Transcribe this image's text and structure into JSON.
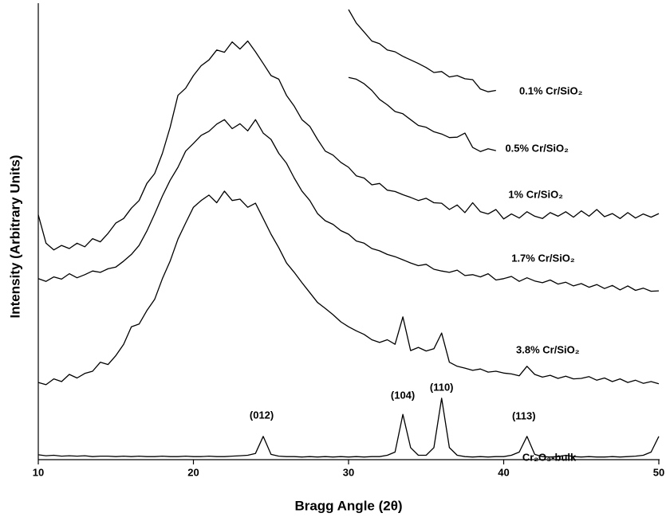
{
  "chart_data": {
    "type": "line",
    "x_label": "Bragg Angle (2θ)",
    "y_label": "Intensity (Arbitrary Units)",
    "xlim": [
      10,
      50
    ],
    "xticks": [
      10,
      20,
      30,
      40,
      50
    ],
    "ylim": [
      0,
      100
    ],
    "x": [
      10,
      10.5,
      11,
      11.5,
      12,
      12.5,
      13,
      13.5,
      14,
      14.5,
      15,
      15.5,
      16,
      16.5,
      17,
      17.5,
      18,
      18.5,
      19,
      19.5,
      20,
      20.5,
      21,
      21.5,
      22,
      22.5,
      23,
      23.5,
      24,
      24.5,
      25,
      25.5,
      26,
      26.5,
      27,
      27.5,
      28,
      28.5,
      29,
      29.5,
      30,
      30.5,
      31,
      31.5,
      32,
      32.5,
      33,
      33.5,
      34,
      34.5,
      35,
      35.5,
      36,
      36.5,
      37,
      37.5,
      38,
      38.5,
      39,
      39.5,
      40,
      40.5,
      41,
      41.5,
      42,
      42.5,
      43,
      43.5,
      44,
      44.5,
      45,
      45.5,
      46,
      46.5,
      47,
      47.5,
      48,
      48.5,
      49,
      49.5,
      50
    ],
    "series": [
      {
        "name": "0.1% Cr/SiO₂",
        "color": "#000000",
        "label_at": [
          41.0,
          81.7
        ],
        "values": [
          null,
          null,
          null,
          null,
          null,
          null,
          null,
          null,
          null,
          null,
          null,
          null,
          null,
          null,
          null,
          null,
          null,
          null,
          null,
          null,
          null,
          null,
          null,
          null,
          null,
          null,
          null,
          null,
          null,
          null,
          null,
          null,
          null,
          null,
          null,
          null,
          null,
          null,
          null,
          null,
          100,
          97.0,
          95.0,
          93.0,
          92.4,
          91.0,
          90.6,
          89.6,
          88.8,
          88.0,
          87.1,
          86.0,
          86.2,
          85.0,
          85.3,
          84.6,
          84.4,
          82.3,
          81.7,
          82.0,
          null,
          null,
          null,
          null,
          null,
          null,
          null,
          null,
          null,
          null,
          null,
          null,
          null,
          null,
          null,
          null,
          null,
          null,
          null,
          null,
          null
        ]
      },
      {
        "name": "0.5% Cr/SiO₂",
        "color": "#000000",
        "label_at": [
          40.1,
          69.0
        ],
        "values": [
          null,
          null,
          null,
          null,
          null,
          null,
          null,
          null,
          null,
          null,
          null,
          null,
          null,
          null,
          null,
          null,
          null,
          null,
          null,
          null,
          null,
          null,
          null,
          null,
          null,
          null,
          null,
          null,
          null,
          null,
          null,
          null,
          null,
          null,
          null,
          null,
          null,
          null,
          null,
          null,
          84.9,
          84.5,
          83.5,
          82.0,
          80.0,
          78.8,
          77.3,
          76.8,
          75.5,
          74.2,
          73.8,
          72.8,
          72.3,
          71.5,
          71.6,
          72.5,
          69.3,
          68.4,
          69.0,
          68.6,
          null,
          null,
          null,
          null,
          null,
          null,
          null,
          null,
          null,
          null,
          null,
          null,
          null,
          null,
          null,
          null,
          null,
          null,
          null,
          null,
          null
        ]
      },
      {
        "name": "1% Cr/SiO₂",
        "color": "#000000",
        "label_at": [
          40.3,
          58.7
        ],
        "values": [
          54.3,
          48.0,
          46.5,
          47.5,
          46.8,
          48.0,
          47.2,
          49.0,
          48.3,
          50.2,
          52.5,
          53.5,
          55.8,
          57.5,
          61.3,
          63.5,
          68.0,
          73.8,
          80.9,
          82.5,
          85.3,
          87.5,
          88.8,
          91.0,
          90.5,
          92.8,
          91.2,
          93.0,
          90.6,
          88.0,
          85.3,
          84.5,
          80.9,
          78.5,
          75.5,
          74.0,
          71.1,
          68.5,
          67.6,
          66.0,
          64.9,
          63.0,
          62.5,
          61.0,
          61.3,
          59.8,
          59.5,
          58.8,
          58.2,
          57.5,
          58.0,
          57.0,
          56.9,
          55.5,
          56.5,
          54.8,
          57.0,
          55.0,
          54.5,
          55.5,
          53.4,
          54.5,
          53.6,
          55.0,
          54.0,
          53.5,
          54.8,
          54.0,
          55.0,
          53.8,
          55.2,
          54.0,
          55.5,
          53.9,
          54.6,
          53.5,
          54.8,
          53.6,
          54.5,
          53.8,
          54.6
        ]
      },
      {
        "name": "1.7% Cr/SiO₂",
        "color": "#000000",
        "label_at": [
          40.5,
          44.5
        ],
        "values": [
          40.1,
          39.5,
          40.5,
          40.0,
          41.2,
          40.3,
          41.0,
          41.8,
          41.5,
          42.3,
          42.7,
          44.0,
          45.5,
          47.5,
          50.7,
          54.5,
          58.5,
          62.0,
          64.9,
          68.5,
          70.2,
          72.0,
          72.9,
          74.5,
          75.5,
          73.5,
          74.6,
          73.0,
          75.5,
          72.5,
          71.1,
          68.0,
          65.8,
          62.5,
          59.6,
          57.5,
          54.6,
          53.0,
          52.2,
          50.8,
          50.0,
          48.5,
          48.0,
          46.8,
          46.3,
          45.5,
          45.0,
          44.3,
          43.6,
          43.0,
          43.3,
          42.2,
          41.8,
          41.5,
          42.0,
          40.8,
          41.0,
          40.5,
          41.2,
          39.8,
          40.1,
          40.6,
          39.5,
          40.3,
          39.6,
          39.2,
          39.8,
          38.9,
          39.3,
          38.5,
          39.0,
          38.2,
          38.8,
          37.9,
          38.6,
          37.6,
          38.5,
          37.5,
          38.0,
          37.3,
          37.4
        ]
      },
      {
        "name": "3.8% Cr/SiO₂",
        "color": "#000000",
        "label_at": [
          40.8,
          24.1
        ],
        "values": [
          17.0,
          16.5,
          17.8,
          17.2,
          18.8,
          18.0,
          19.0,
          19.5,
          21.5,
          21.0,
          23.0,
          25.5,
          29.4,
          30.0,
          33.0,
          35.5,
          40.1,
          44.0,
          48.9,
          52.5,
          56.0,
          57.5,
          58.7,
          57.0,
          59.6,
          57.5,
          57.8,
          56.0,
          56.9,
          53.5,
          50.0,
          47.0,
          43.6,
          41.5,
          39.2,
          37.0,
          34.8,
          33.5,
          32.1,
          30.5,
          29.4,
          28.5,
          27.7,
          26.5,
          25.9,
          26.5,
          25.5,
          31.6,
          24.1,
          24.8,
          24.0,
          24.5,
          28.0,
          21.5,
          20.6,
          20.2,
          19.7,
          20.0,
          19.3,
          19.5,
          19.1,
          18.9,
          18.5,
          20.6,
          18.8,
          18.2,
          18.6,
          17.9,
          18.4,
          17.8,
          17.9,
          18.3,
          17.5,
          18.0,
          17.2,
          17.8,
          17.0,
          17.5,
          16.8,
          17.2,
          16.7
        ]
      },
      {
        "name": "Cr₂O₃-bulk",
        "color": "#000000",
        "label_at": [
          41.2,
          0.2
        ],
        "values": [
          0.9,
          0.7,
          0.8,
          0.6,
          0.7,
          0.6,
          0.7,
          0.5,
          0.6,
          0.6,
          0.5,
          0.6,
          0.5,
          0.6,
          0.5,
          0.5,
          0.6,
          0.5,
          0.5,
          0.6,
          0.5,
          0.5,
          0.6,
          0.5,
          0.5,
          0.6,
          0.7,
          0.8,
          1.2,
          5.0,
          1.0,
          0.6,
          0.5,
          0.5,
          0.4,
          0.5,
          0.4,
          0.5,
          0.4,
          0.5,
          0.4,
          0.5,
          0.4,
          0.5,
          0.5,
          0.8,
          1.5,
          9.9,
          2.5,
          0.8,
          0.8,
          2.5,
          13.5,
          2.5,
          0.8,
          0.5,
          0.4,
          0.5,
          0.4,
          0.5,
          0.5,
          0.8,
          1.5,
          5.0,
          1.0,
          0.5,
          0.4,
          0.5,
          0.8,
          0.5,
          0.4,
          0.5,
          0.4,
          0.4,
          0.5,
          0.4,
          0.5,
          0.6,
          0.8,
          1.5,
          5.0
        ]
      }
    ],
    "annotations": [
      {
        "text": "(012)",
        "x": 24.4,
        "y": 9.6
      },
      {
        "text": "(104)",
        "x": 33.5,
        "y": 14.0
      },
      {
        "text": "(110)",
        "x": 36.0,
        "y": 15.8
      },
      {
        "text": "(113)",
        "x": 41.3,
        "y": 9.4
      }
    ]
  }
}
